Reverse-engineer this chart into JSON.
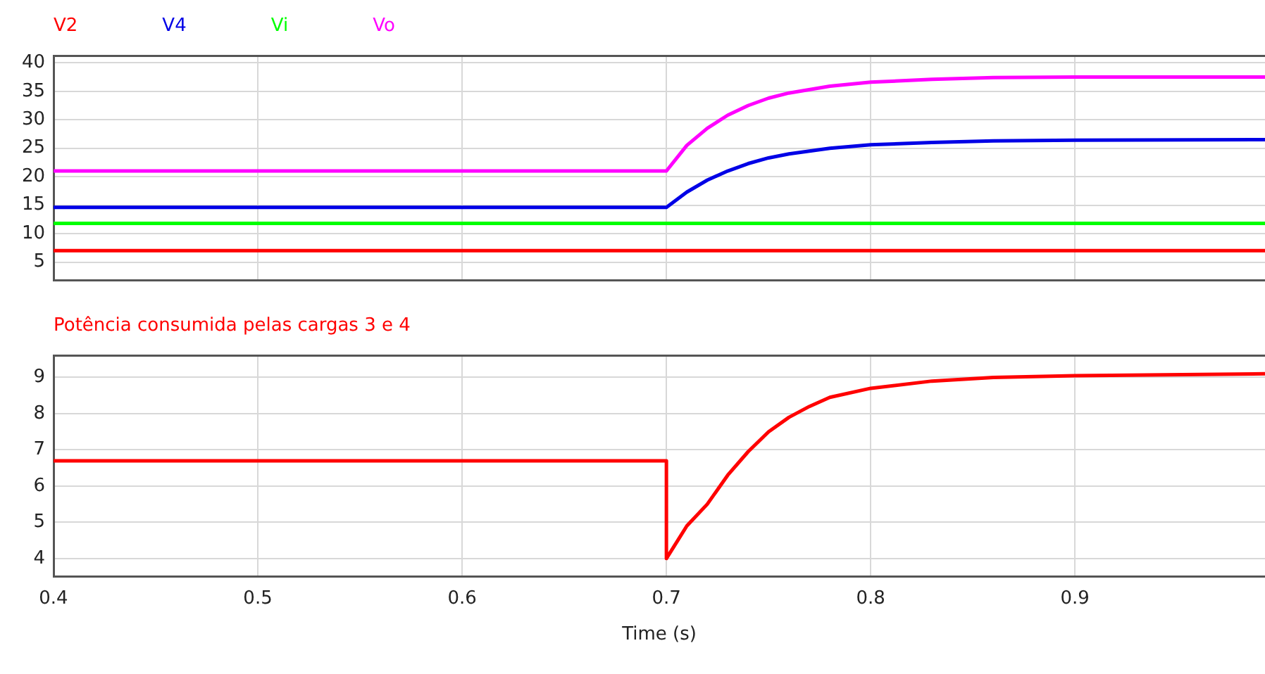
{
  "chart_data": [
    {
      "type": "line",
      "legend": "top left",
      "grid": true,
      "tick_labels": "y",
      "xlim": [
        0.4,
        0.993
      ],
      "xticks": [
        0.4,
        0.5,
        0.6,
        0.7,
        0.8,
        0.9
      ],
      "ylim": [
        1.8,
        41.2
      ],
      "yticks": [
        5,
        10,
        15,
        20,
        25,
        30,
        35,
        40
      ],
      "series": [
        {
          "name": "V2",
          "color": "#ff0000",
          "x": [
            0.4,
            0.7,
            0.993
          ],
          "values": [
            7.0,
            7.0,
            7.0
          ]
        },
        {
          "name": "V4",
          "color": "#0000e6",
          "x": [
            0.4,
            0.7,
            0.71,
            0.72,
            0.73,
            0.74,
            0.75,
            0.76,
            0.78,
            0.8,
            0.83,
            0.86,
            0.9,
            0.993
          ],
          "values": [
            14.6,
            14.6,
            17.3,
            19.4,
            21.0,
            22.3,
            23.3,
            24.0,
            25.0,
            25.6,
            26.0,
            26.3,
            26.4,
            26.5
          ]
        },
        {
          "name": "Vi",
          "color": "#00ff00",
          "x": [
            0.4,
            0.993
          ],
          "values": [
            11.8,
            11.8
          ]
        },
        {
          "name": "Vo",
          "color": "#ff00ff",
          "x": [
            0.4,
            0.7,
            0.71,
            0.72,
            0.73,
            0.74,
            0.75,
            0.76,
            0.78,
            0.8,
            0.83,
            0.86,
            0.9,
            0.993
          ],
          "values": [
            21.0,
            21.0,
            25.5,
            28.5,
            30.8,
            32.5,
            33.8,
            34.7,
            35.9,
            36.6,
            37.1,
            37.4,
            37.5,
            37.5
          ]
        }
      ]
    },
    {
      "type": "line",
      "legend": "top left",
      "grid": true,
      "xlabel": "Time (s)",
      "xlim": [
        0.4,
        0.993
      ],
      "xticks": [
        0.4,
        0.5,
        0.6,
        0.7,
        0.8,
        0.9
      ],
      "ylim": [
        3.5,
        9.6
      ],
      "yticks": [
        4,
        5,
        6,
        7,
        8,
        9
      ],
      "series": [
        {
          "name": "Potência consumida pelas cargas 3 e 4",
          "color": "#ff0000",
          "x": [
            0.4,
            0.7,
            0.7,
            0.71,
            0.72,
            0.73,
            0.74,
            0.75,
            0.76,
            0.77,
            0.78,
            0.8,
            0.83,
            0.86,
            0.9,
            0.993
          ],
          "values": [
            6.7,
            6.7,
            4.0,
            4.9,
            5.5,
            6.3,
            6.95,
            7.5,
            7.9,
            8.2,
            8.45,
            8.7,
            8.9,
            9.0,
            9.05,
            9.1
          ]
        }
      ]
    }
  ]
}
